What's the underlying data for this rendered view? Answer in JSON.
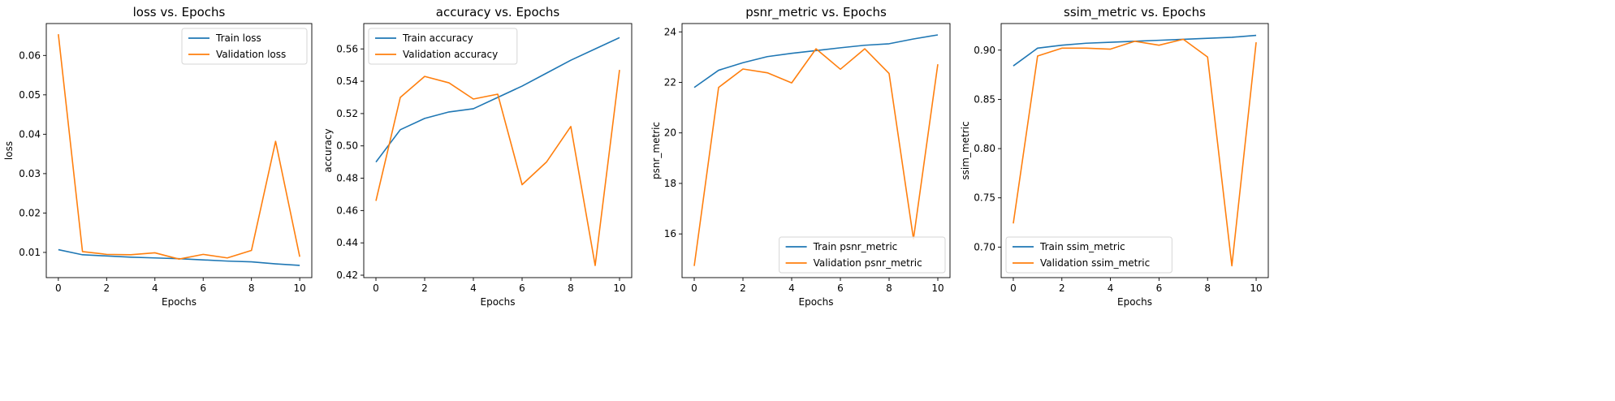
{
  "colors": {
    "train": "#1f77b4",
    "validation": "#ff7f0e"
  },
  "chart_data": [
    {
      "type": "line",
      "title": "loss vs. Epochs",
      "xlabel": "Epochs",
      "ylabel": "loss",
      "x": [
        0,
        1,
        2,
        3,
        4,
        5,
        6,
        7,
        8,
        9,
        10
      ],
      "xlim": [
        -0.5,
        10.5
      ],
      "ylim": [
        0.0036,
        0.0681
      ],
      "xticks": [
        0,
        2,
        4,
        6,
        8,
        10
      ],
      "yticks": [
        0.01,
        0.02,
        0.03,
        0.04,
        0.05,
        0.06
      ],
      "ytick_labels": [
        "0.01",
        "0.02",
        "0.03",
        "0.04",
        "0.05",
        "0.06"
      ],
      "legend_loc": "top-right",
      "series": [
        {
          "name": "Train loss",
          "color": "train",
          "values": [
            0.0107,
            0.0094,
            0.0091,
            0.0088,
            0.0086,
            0.0084,
            0.0081,
            0.0078,
            0.0076,
            0.0071,
            0.0067
          ]
        },
        {
          "name": "Validation loss",
          "color": "validation",
          "values": [
            0.0654,
            0.0102,
            0.0095,
            0.0094,
            0.0099,
            0.0083,
            0.0095,
            0.0086,
            0.0105,
            0.0382,
            0.0089
          ]
        }
      ]
    },
    {
      "type": "line",
      "title": "accuracy vs. Epochs",
      "xlabel": "Epochs",
      "ylabel": "accuracy",
      "x": [
        0,
        1,
        2,
        3,
        4,
        5,
        6,
        7,
        8,
        9,
        10
      ],
      "xlim": [
        -0.5,
        10.5
      ],
      "ylim": [
        0.4185,
        0.5757
      ],
      "xticks": [
        0,
        2,
        4,
        6,
        8,
        10
      ],
      "yticks": [
        0.42,
        0.44,
        0.46,
        0.48,
        0.5,
        0.52,
        0.54,
        0.56
      ],
      "ytick_labels": [
        "0.42",
        "0.44",
        "0.46",
        "0.48",
        "0.50",
        "0.52",
        "0.54",
        "0.56"
      ],
      "legend_loc": "top-left",
      "series": [
        {
          "name": "Train accuracy",
          "color": "train",
          "values": [
            0.49,
            0.51,
            0.517,
            0.521,
            0.523,
            0.53,
            0.537,
            0.545,
            0.553,
            0.56,
            0.567
          ]
        },
        {
          "name": "Validation accuracy",
          "color": "validation",
          "values": [
            0.466,
            0.53,
            0.543,
            0.539,
            0.529,
            0.532,
            0.476,
            0.49,
            0.512,
            0.426,
            0.547
          ]
        }
      ]
    },
    {
      "type": "line",
      "title": "psnr_metric vs. Epochs",
      "xlabel": "Epochs",
      "ylabel": "psnr_metric",
      "x": [
        0,
        1,
        2,
        3,
        4,
        5,
        6,
        7,
        8,
        9,
        10
      ],
      "xlim": [
        -0.5,
        10.5
      ],
      "ylim": [
        14.27,
        24.33
      ],
      "xticks": [
        0,
        2,
        4,
        6,
        8,
        10
      ],
      "yticks": [
        16,
        18,
        20,
        22,
        24
      ],
      "ytick_labels": [
        "16",
        "18",
        "20",
        "22",
        "24"
      ],
      "legend_loc": "bottom-right",
      "series": [
        {
          "name": "Train psnr_metric",
          "color": "train",
          "values": [
            21.8,
            22.48,
            22.78,
            23.02,
            23.15,
            23.26,
            23.37,
            23.47,
            23.53,
            23.72,
            23.88
          ]
        },
        {
          "name": "Validation psnr_metric",
          "color": "validation",
          "values": [
            14.73,
            21.8,
            22.53,
            22.38,
            21.98,
            23.33,
            22.52,
            23.33,
            22.35,
            15.8,
            22.72
          ]
        }
      ]
    },
    {
      "type": "line",
      "title": "ssim_metric vs. Epochs",
      "xlabel": "Epochs",
      "ylabel": "ssim_metric",
      "x": [
        0,
        1,
        2,
        3,
        4,
        5,
        6,
        7,
        8,
        9,
        10
      ],
      "xlim": [
        -0.5,
        10.5
      ],
      "ylim": [
        0.669,
        0.927
      ],
      "xticks": [
        0,
        2,
        4,
        6,
        8,
        10
      ],
      "yticks": [
        0.7,
        0.75,
        0.8,
        0.85,
        0.9
      ],
      "ytick_labels": [
        "0.70",
        "0.75",
        "0.80",
        "0.85",
        "0.90"
      ],
      "legend_loc": "bottom-left",
      "series": [
        {
          "name": "Train ssim_metric",
          "color": "train",
          "values": [
            0.884,
            0.902,
            0.905,
            0.907,
            0.908,
            0.909,
            0.91,
            0.911,
            0.912,
            0.913,
            0.915
          ]
        },
        {
          "name": "Validation ssim_metric",
          "color": "validation",
          "values": [
            0.724,
            0.894,
            0.902,
            0.902,
            0.901,
            0.909,
            0.905,
            0.911,
            0.893,
            0.681,
            0.908
          ]
        }
      ]
    }
  ]
}
